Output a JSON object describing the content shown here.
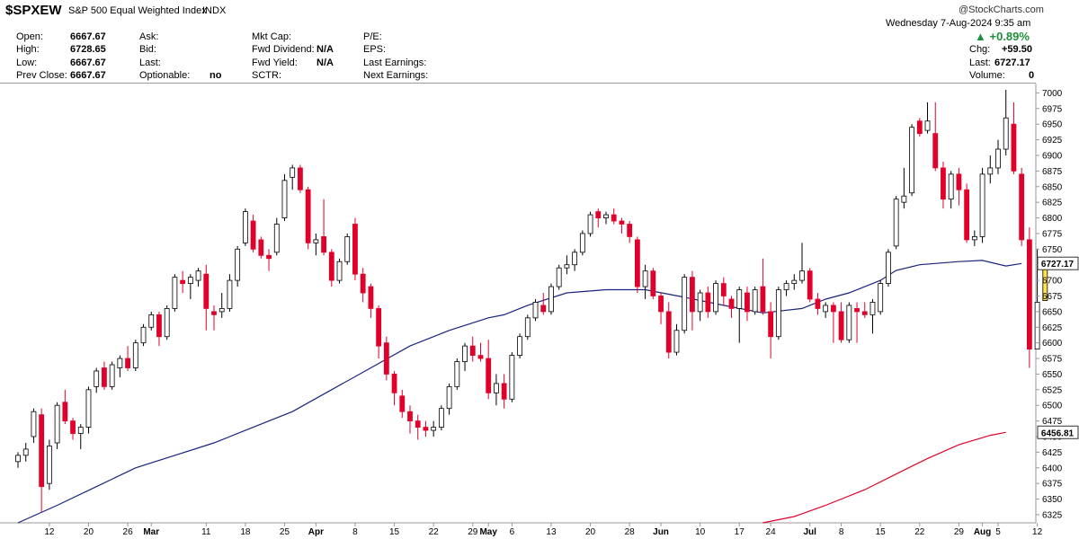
{
  "header": {
    "symbol": "$SPXEW",
    "name": "S&P 500 Equal Weighted Index",
    "exchange": "INDX",
    "brand": "@StockCharts.com",
    "datetime": "Wednesday  7-Aug-2024  9:35 am",
    "change_pct": "+0.89%",
    "up_arrow": "▲",
    "col1": [
      {
        "label": "Open:",
        "value": "6667.67"
      },
      {
        "label": "High:",
        "value": "6728.65"
      },
      {
        "label": "Low:",
        "value": "6667.67"
      },
      {
        "label": "Prev Close:",
        "value": "6667.67"
      }
    ],
    "col2": [
      {
        "label": "Ask:",
        "value": ""
      },
      {
        "label": "Bid:",
        "value": ""
      },
      {
        "label": "Last:",
        "value": ""
      },
      {
        "label": "Optionable:",
        "value": "no"
      }
    ],
    "col3": [
      {
        "label": "Mkt Cap:",
        "value": ""
      },
      {
        "label": "Fwd Dividend:",
        "value": "N/A"
      },
      {
        "label": "Fwd Yield:",
        "value": "N/A"
      },
      {
        "label": "SCTR:",
        "value": ""
      }
    ],
    "col4": [
      {
        "label": "P/E:",
        "value": ""
      },
      {
        "label": "EPS:",
        "value": ""
      },
      {
        "label": "Last Earnings:",
        "value": ""
      },
      {
        "label": "Next Earnings:",
        "value": ""
      }
    ],
    "right": [
      {
        "label": "Chg:",
        "value": "+59.50"
      },
      {
        "label": "Last:",
        "value": "6727.17"
      },
      {
        "label": "Volume:",
        "value": "0"
      }
    ]
  },
  "chart_data": {
    "type": "candlestick",
    "ylim": [
      6312,
      7015
    ],
    "y_ticks": [
      6325,
      6350,
      6375,
      6400,
      6425,
      6450,
      6475,
      6500,
      6525,
      6550,
      6575,
      6600,
      6625,
      6650,
      6675,
      6700,
      6725,
      6750,
      6775,
      6800,
      6825,
      6850,
      6875,
      6900,
      6925,
      6950,
      6975,
      7000
    ],
    "x_ticks": [
      {
        "label": "12",
        "bold": false,
        "t": 4
      },
      {
        "label": "20",
        "bold": false,
        "t": 9
      },
      {
        "label": "26",
        "bold": false,
        "t": 14
      },
      {
        "label": "Mar",
        "bold": true,
        "t": 17
      },
      {
        "label": "11",
        "bold": false,
        "t": 24
      },
      {
        "label": "18",
        "bold": false,
        "t": 29
      },
      {
        "label": "25",
        "bold": false,
        "t": 34
      },
      {
        "label": "Apr",
        "bold": true,
        "t": 38
      },
      {
        "label": "8",
        "bold": false,
        "t": 43
      },
      {
        "label": "15",
        "bold": false,
        "t": 48
      },
      {
        "label": "22",
        "bold": false,
        "t": 53
      },
      {
        "label": "29",
        "bold": false,
        "t": 58
      },
      {
        "label": "May",
        "bold": true,
        "t": 60
      },
      {
        "label": "6",
        "bold": false,
        "t": 63
      },
      {
        "label": "13",
        "bold": false,
        "t": 68
      },
      {
        "label": "20",
        "bold": false,
        "t": 73
      },
      {
        "label": "28",
        "bold": false,
        "t": 78
      },
      {
        "label": "Jun",
        "bold": true,
        "t": 82
      },
      {
        "label": "10",
        "bold": false,
        "t": 87
      },
      {
        "label": "17",
        "bold": false,
        "t": 92
      },
      {
        "label": "24",
        "bold": false,
        "t": 96
      },
      {
        "label": "Jul",
        "bold": true,
        "t": 101
      },
      {
        "label": "8",
        "bold": false,
        "t": 105
      },
      {
        "label": "15",
        "bold": false,
        "t": 110
      },
      {
        "label": "22",
        "bold": false,
        "t": 115
      },
      {
        "label": "29",
        "bold": false,
        "t": 120
      },
      {
        "label": "Aug",
        "bold": true,
        "t": 123
      },
      {
        "label": "5",
        "bold": false,
        "t": 125
      },
      {
        "label": "12",
        "bold": false,
        "t": 130
      }
    ],
    "candles": [
      {
        "o": 6410,
        "h": 6425,
        "l": 6400,
        "c": 6420
      },
      {
        "o": 6420,
        "h": 6440,
        "l": 6410,
        "c": 6430
      },
      {
        "o": 6450,
        "h": 6495,
        "l": 6440,
        "c": 6490
      },
      {
        "o": 6485,
        "h": 6495,
        "l": 6330,
        "c": 6370
      },
      {
        "o": 6375,
        "h": 6445,
        "l": 6365,
        "c": 6435
      },
      {
        "o": 6440,
        "h": 6505,
        "l": 6430,
        "c": 6500
      },
      {
        "o": 6505,
        "h": 6525,
        "l": 6470,
        "c": 6475
      },
      {
        "o": 6475,
        "h": 6480,
        "l": 6445,
        "c": 6455
      },
      {
        "o": 6455,
        "h": 6470,
        "l": 6430,
        "c": 6465
      },
      {
        "o": 6465,
        "h": 6530,
        "l": 6455,
        "c": 6525
      },
      {
        "o": 6530,
        "h": 6560,
        "l": 6520,
        "c": 6555
      },
      {
        "o": 6560,
        "h": 6570,
        "l": 6525,
        "c": 6530
      },
      {
        "o": 6530,
        "h": 6570,
        "l": 6525,
        "c": 6565
      },
      {
        "o": 6560,
        "h": 6580,
        "l": 6545,
        "c": 6575
      },
      {
        "o": 6575,
        "h": 6595,
        "l": 6555,
        "c": 6560
      },
      {
        "o": 6560,
        "h": 6605,
        "l": 6555,
        "c": 6600
      },
      {
        "o": 6600,
        "h": 6630,
        "l": 6595,
        "c": 6625
      },
      {
        "o": 6625,
        "h": 6650,
        "l": 6620,
        "c": 6645
      },
      {
        "o": 6645,
        "h": 6650,
        "l": 6595,
        "c": 6610
      },
      {
        "o": 6610,
        "h": 6660,
        "l": 6605,
        "c": 6655
      },
      {
        "o": 6655,
        "h": 6710,
        "l": 6650,
        "c": 6705
      },
      {
        "o": 6700,
        "h": 6715,
        "l": 6680,
        "c": 6695
      },
      {
        "o": 6695,
        "h": 6710,
        "l": 6670,
        "c": 6705
      },
      {
        "o": 6700,
        "h": 6720,
        "l": 6690,
        "c": 6715
      },
      {
        "o": 6710,
        "h": 6725,
        "l": 6620,
        "c": 6655
      },
      {
        "o": 6650,
        "h": 6660,
        "l": 6620,
        "c": 6645
      },
      {
        "o": 6650,
        "h": 6680,
        "l": 6640,
        "c": 6655
      },
      {
        "o": 6655,
        "h": 6710,
        "l": 6650,
        "c": 6700
      },
      {
        "o": 6700,
        "h": 6755,
        "l": 6690,
        "c": 6750
      },
      {
        "o": 6760,
        "h": 6815,
        "l": 6755,
        "c": 6810
      },
      {
        "o": 6795,
        "h": 6805,
        "l": 6745,
        "c": 6750
      },
      {
        "o": 6765,
        "h": 6770,
        "l": 6735,
        "c": 6740
      },
      {
        "o": 6740,
        "h": 6750,
        "l": 6715,
        "c": 6735
      },
      {
        "o": 6745,
        "h": 6800,
        "l": 6740,
        "c": 6790
      },
      {
        "o": 6800,
        "h": 6870,
        "l": 6795,
        "c": 6860
      },
      {
        "o": 6865,
        "h": 6885,
        "l": 6845,
        "c": 6880
      },
      {
        "o": 6880,
        "h": 6885,
        "l": 6840,
        "c": 6845
      },
      {
        "o": 6845,
        "h": 6850,
        "l": 6750,
        "c": 6760
      },
      {
        "o": 6760,
        "h": 6775,
        "l": 6740,
        "c": 6765
      },
      {
        "o": 6770,
        "h": 6830,
        "l": 6740,
        "c": 6745
      },
      {
        "o": 6745,
        "h": 6750,
        "l": 6690,
        "c": 6700
      },
      {
        "o": 6700,
        "h": 6735,
        "l": 6695,
        "c": 6730
      },
      {
        "o": 6730,
        "h": 6775,
        "l": 6725,
        "c": 6770
      },
      {
        "o": 6790,
        "h": 6800,
        "l": 6700,
        "c": 6710
      },
      {
        "o": 6710,
        "h": 6720,
        "l": 6665,
        "c": 6680
      },
      {
        "o": 6690,
        "h": 6695,
        "l": 6640,
        "c": 6655
      },
      {
        "o": 6655,
        "h": 6660,
        "l": 6575,
        "c": 6595
      },
      {
        "o": 6600,
        "h": 6610,
        "l": 6540,
        "c": 6550
      },
      {
        "o": 6550,
        "h": 6555,
        "l": 6500,
        "c": 6520
      },
      {
        "o": 6515,
        "h": 6525,
        "l": 6480,
        "c": 6490
      },
      {
        "o": 6490,
        "h": 6500,
        "l": 6455,
        "c": 6475
      },
      {
        "o": 6475,
        "h": 6485,
        "l": 6445,
        "c": 6465
      },
      {
        "o": 6465,
        "h": 6475,
        "l": 6450,
        "c": 6460
      },
      {
        "o": 6460,
        "h": 6475,
        "l": 6450,
        "c": 6465
      },
      {
        "o": 6465,
        "h": 6500,
        "l": 6460,
        "c": 6495
      },
      {
        "o": 6495,
        "h": 6535,
        "l": 6485,
        "c": 6530
      },
      {
        "o": 6530,
        "h": 6575,
        "l": 6525,
        "c": 6570
      },
      {
        "o": 6570,
        "h": 6600,
        "l": 6555,
        "c": 6595
      },
      {
        "o": 6595,
        "h": 6610,
        "l": 6570,
        "c": 6580
      },
      {
        "o": 6580,
        "h": 6600,
        "l": 6570,
        "c": 6575
      },
      {
        "o": 6575,
        "h": 6605,
        "l": 6510,
        "c": 6520
      },
      {
        "o": 6520,
        "h": 6550,
        "l": 6500,
        "c": 6535
      },
      {
        "o": 6535,
        "h": 6550,
        "l": 6495,
        "c": 6510
      },
      {
        "o": 6510,
        "h": 6585,
        "l": 6505,
        "c": 6580
      },
      {
        "o": 6580,
        "h": 6615,
        "l": 6575,
        "c": 6610
      },
      {
        "o": 6610,
        "h": 6645,
        "l": 6605,
        "c": 6640
      },
      {
        "o": 6640,
        "h": 6670,
        "l": 6635,
        "c": 6665
      },
      {
        "o": 6660,
        "h": 6680,
        "l": 6645,
        "c": 6650
      },
      {
        "o": 6650,
        "h": 6695,
        "l": 6645,
        "c": 6690
      },
      {
        "o": 6690,
        "h": 6725,
        "l": 6685,
        "c": 6720
      },
      {
        "o": 6720,
        "h": 6740,
        "l": 6710,
        "c": 6725
      },
      {
        "o": 6725,
        "h": 6750,
        "l": 6715,
        "c": 6745
      },
      {
        "o": 6745,
        "h": 6780,
        "l": 6740,
        "c": 6775
      },
      {
        "o": 6775,
        "h": 6810,
        "l": 6770,
        "c": 6805
      },
      {
        "o": 6810,
        "h": 6815,
        "l": 6785,
        "c": 6800
      },
      {
        "o": 6800,
        "h": 6810,
        "l": 6790,
        "c": 6805
      },
      {
        "o": 6805,
        "h": 6815,
        "l": 6790,
        "c": 6795
      },
      {
        "o": 6795,
        "h": 6800,
        "l": 6775,
        "c": 6790
      },
      {
        "o": 6790,
        "h": 6795,
        "l": 6760,
        "c": 6770
      },
      {
        "o": 6765,
        "h": 6770,
        "l": 6680,
        "c": 6690
      },
      {
        "o": 6690,
        "h": 6725,
        "l": 6670,
        "c": 6715
      },
      {
        "o": 6715,
        "h": 6720,
        "l": 6670,
        "c": 6675
      },
      {
        "o": 6675,
        "h": 6680,
        "l": 6630,
        "c": 6650
      },
      {
        "o": 6650,
        "h": 6665,
        "l": 6575,
        "c": 6585
      },
      {
        "o": 6585,
        "h": 6630,
        "l": 6580,
        "c": 6620
      },
      {
        "o": 6620,
        "h": 6710,
        "l": 6615,
        "c": 6705
      },
      {
        "o": 6705,
        "h": 6715,
        "l": 6620,
        "c": 6650
      },
      {
        "o": 6650,
        "h": 6685,
        "l": 6635,
        "c": 6680
      },
      {
        "o": 6680,
        "h": 6690,
        "l": 6640,
        "c": 6650
      },
      {
        "o": 6650,
        "h": 6700,
        "l": 6645,
        "c": 6695
      },
      {
        "o": 6695,
        "h": 6705,
        "l": 6660,
        "c": 6675
      },
      {
        "o": 6670,
        "h": 6675,
        "l": 6640,
        "c": 6655
      },
      {
        "o": 6655,
        "h": 6690,
        "l": 6600,
        "c": 6685
      },
      {
        "o": 6680,
        "h": 6690,
        "l": 6635,
        "c": 6650
      },
      {
        "o": 6650,
        "h": 6690,
        "l": 6645,
        "c": 6685
      },
      {
        "o": 6690,
        "h": 6735,
        "l": 6645,
        "c": 6650
      },
      {
        "o": 6650,
        "h": 6665,
        "l": 6575,
        "c": 6610
      },
      {
        "o": 6610,
        "h": 6690,
        "l": 6605,
        "c": 6685
      },
      {
        "o": 6685,
        "h": 6700,
        "l": 6675,
        "c": 6695
      },
      {
        "o": 6695,
        "h": 6710,
        "l": 6685,
        "c": 6700
      },
      {
        "o": 6700,
        "h": 6760,
        "l": 6695,
        "c": 6715
      },
      {
        "o": 6715,
        "h": 6720,
        "l": 6665,
        "c": 6670
      },
      {
        "o": 6670,
        "h": 6680,
        "l": 6645,
        "c": 6655
      },
      {
        "o": 6650,
        "h": 6665,
        "l": 6640,
        "c": 6660
      },
      {
        "o": 6660,
        "h": 6665,
        "l": 6600,
        "c": 6650
      },
      {
        "o": 6650,
        "h": 6665,
        "l": 6600,
        "c": 6605
      },
      {
        "o": 6605,
        "h": 6665,
        "l": 6600,
        "c": 6660
      },
      {
        "o": 6655,
        "h": 6665,
        "l": 6600,
        "c": 6650
      },
      {
        "o": 6650,
        "h": 6665,
        "l": 6640,
        "c": 6645
      },
      {
        "o": 6645,
        "h": 6670,
        "l": 6615,
        "c": 6665
      },
      {
        "o": 6650,
        "h": 6700,
        "l": 6645,
        "c": 6695
      },
      {
        "o": 6695,
        "h": 6750,
        "l": 6690,
        "c": 6745
      },
      {
        "o": 6755,
        "h": 6835,
        "l": 6750,
        "c": 6830
      },
      {
        "o": 6825,
        "h": 6880,
        "l": 6815,
        "c": 6835
      },
      {
        "o": 6840,
        "h": 6950,
        "l": 6835,
        "c": 6945
      },
      {
        "o": 6955,
        "h": 6960,
        "l": 6930,
        "c": 6935
      },
      {
        "o": 6940,
        "h": 6985,
        "l": 6935,
        "c": 6955
      },
      {
        "o": 6935,
        "h": 6985,
        "l": 6875,
        "c": 6880
      },
      {
        "o": 6880,
        "h": 6890,
        "l": 6815,
        "c": 6830
      },
      {
        "o": 6830,
        "h": 6875,
        "l": 6815,
        "c": 6870
      },
      {
        "o": 6870,
        "h": 6880,
        "l": 6820,
        "c": 6845
      },
      {
        "o": 6845,
        "h": 6855,
        "l": 6760,
        "c": 6765
      },
      {
        "o": 6765,
        "h": 6780,
        "l": 6755,
        "c": 6770
      },
      {
        "o": 6770,
        "h": 6880,
        "l": 6760,
        "c": 6870
      },
      {
        "o": 6870,
        "h": 6900,
        "l": 6855,
        "c": 6880
      },
      {
        "o": 6880,
        "h": 6925,
        "l": 6870,
        "c": 6910
      },
      {
        "o": 6910,
        "h": 7005,
        "l": 6900,
        "c": 6960
      },
      {
        "o": 6950,
        "h": 6985,
        "l": 6870,
        "c": 6875
      },
      {
        "o": 6870,
        "h": 6880,
        "l": 6755,
        "c": 6765
      },
      {
        "o": 6765,
        "h": 6785,
        "l": 6560,
        "c": 6590
      },
      {
        "o": 6590,
        "h": 6750,
        "l": 6590,
        "c": 6665
      },
      {
        "o": 6667.67,
        "h": 6728.65,
        "l": 6667.67,
        "c": 6727.17
      }
    ],
    "ma_short": [
      [
        0,
        6312
      ],
      [
        5,
        6340
      ],
      [
        10,
        6370
      ],
      [
        15,
        6400
      ],
      [
        20,
        6420
      ],
      [
        25,
        6440
      ],
      [
        30,
        6465
      ],
      [
        35,
        6490
      ],
      [
        40,
        6525
      ],
      [
        45,
        6560
      ],
      [
        50,
        6595
      ],
      [
        55,
        6620
      ],
      [
        60,
        6640
      ],
      [
        62,
        6645
      ],
      [
        65,
        6660
      ],
      [
        70,
        6680
      ],
      [
        75,
        6685
      ],
      [
        80,
        6685
      ],
      [
        85,
        6673
      ],
      [
        90,
        6660
      ],
      [
        95,
        6648
      ],
      [
        100,
        6655
      ],
      [
        103,
        6670
      ],
      [
        106,
        6680
      ],
      [
        108,
        6690
      ],
      [
        110,
        6700
      ],
      [
        112,
        6716
      ],
      [
        115,
        6725
      ],
      [
        120,
        6730
      ],
      [
        123,
        6732
      ],
      [
        126,
        6723
      ],
      [
        128,
        6727
      ]
    ],
    "ma_long": [
      [
        95,
        6312
      ],
      [
        99,
        6322
      ],
      [
        103,
        6340
      ],
      [
        108,
        6365
      ],
      [
        112,
        6390
      ],
      [
        116,
        6415
      ],
      [
        120,
        6437
      ],
      [
        124,
        6452
      ],
      [
        126,
        6456.81
      ]
    ],
    "price_labels": {
      "last": "6727.17",
      "long_ma": "6456.81"
    },
    "colors": {
      "up": "#ffffff",
      "down": "#e1002a",
      "ma_short": "#1a237e",
      "ma_long": "#e1002a",
      "current": "#ffe34d"
    }
  }
}
